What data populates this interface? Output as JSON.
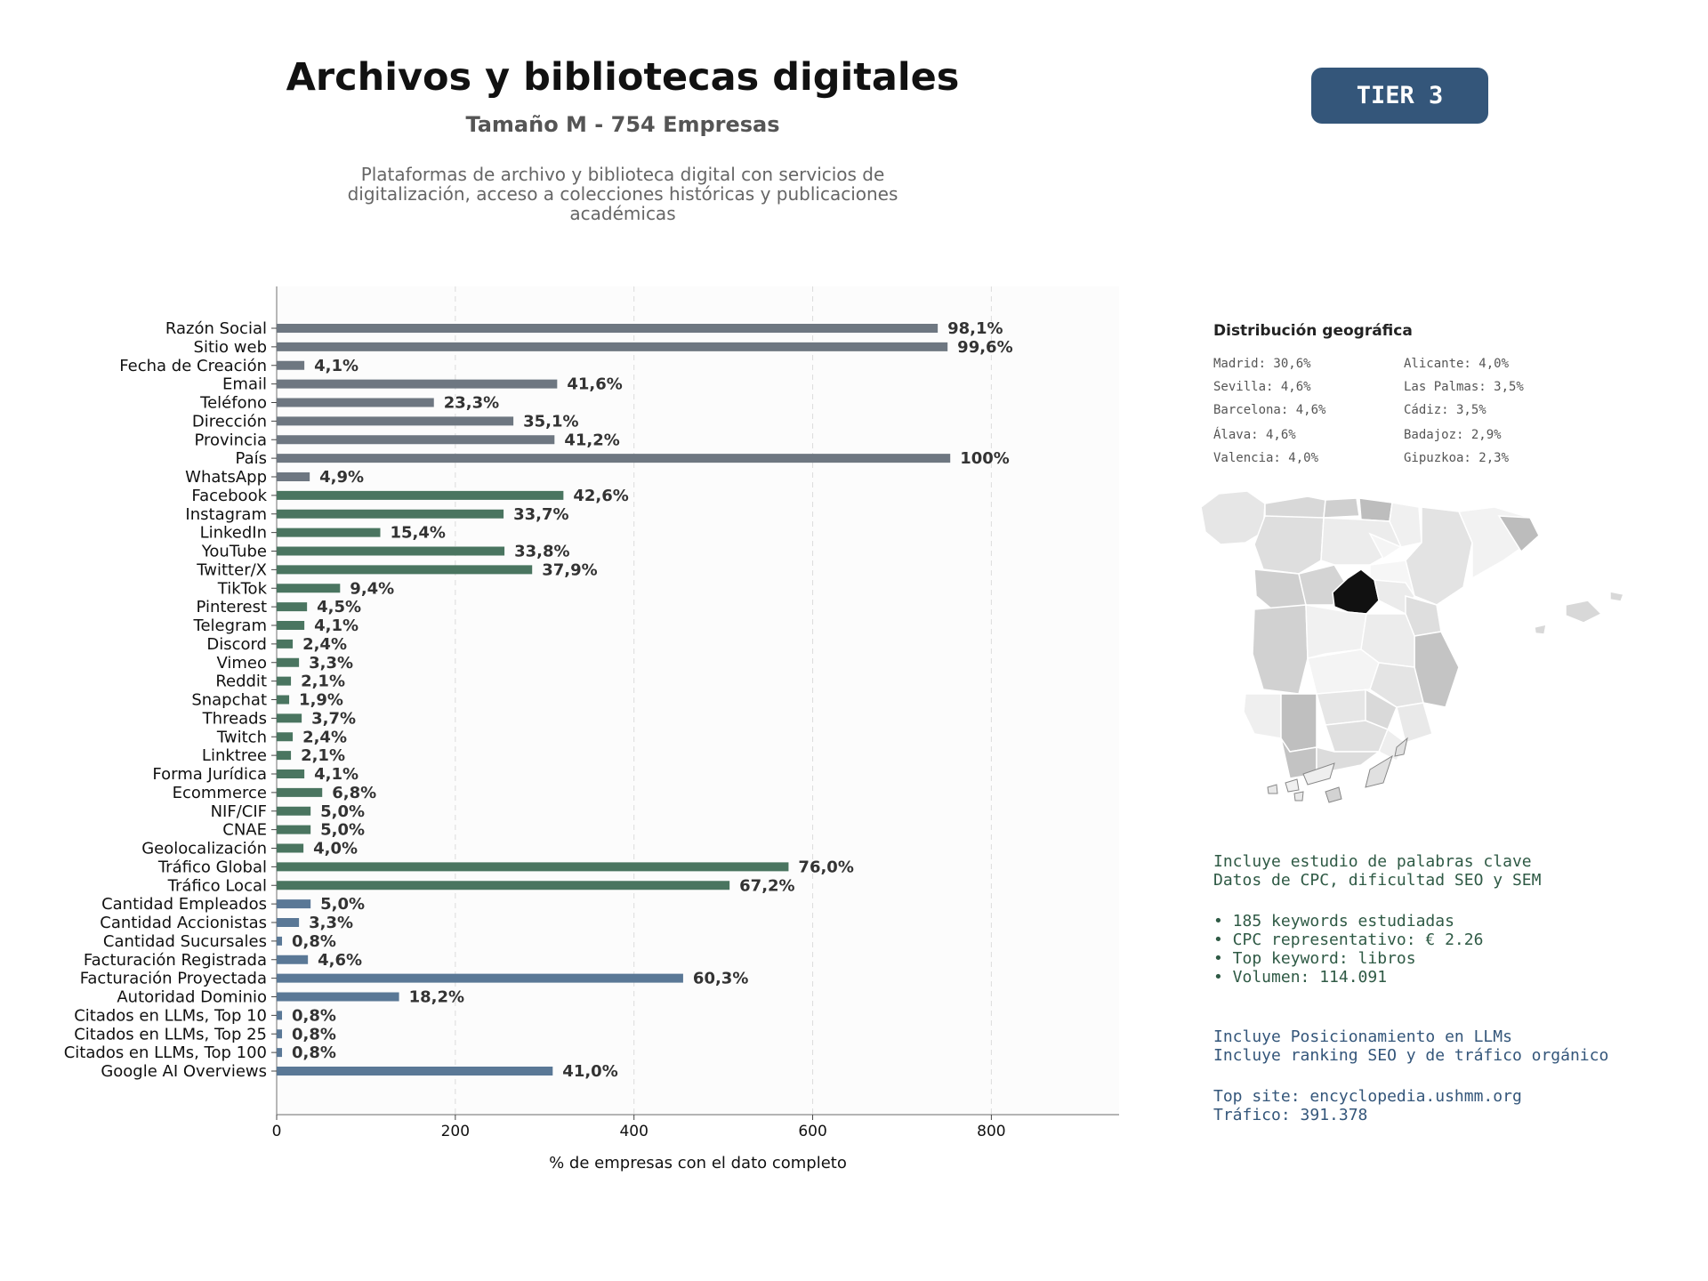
{
  "header": {
    "title": "Archivos y bibliotecas digitales",
    "subtitle": "Tamaño M - 754 Empresas",
    "description": "Plataformas de archivo y biblioteca digital con servicios de digitalización, acceso a colecciones históricas y publicaciones académicas",
    "tier": "TIER 3"
  },
  "colors": {
    "gray": "#6e7781",
    "green": "#4a7560",
    "blue": "#5a7896",
    "map_highlight": "#111111",
    "tier_bg": "#34567a"
  },
  "chart_data": {
    "type": "bar",
    "orientation": "horizontal",
    "xlabel": "% de empresas con el dato completo",
    "xlim": [
      0,
      943
    ],
    "xticks": [
      0,
      200,
      400,
      600,
      800
    ],
    "grid": "vertical dashed",
    "categories": [
      "Razón Social",
      "Sitio web",
      "Fecha de Creación",
      "Email",
      "Teléfono",
      "Dirección",
      "Provincia",
      "País",
      "WhatsApp",
      "Facebook",
      "Instagram",
      "LinkedIn",
      "YouTube",
      "Twitter/X",
      "TikTok",
      "Pinterest",
      "Telegram",
      "Discord",
      "Vimeo",
      "Reddit",
      "Snapchat",
      "Threads",
      "Twitch",
      "Linktree",
      "Forma Jurídica",
      "Ecommerce",
      "NIF/CIF",
      "CNAE",
      "Geolocalización",
      "Tráfico Global",
      "Tráfico Local",
      "Cantidad Empleados",
      "Cantidad Accionistas",
      "Cantidad Sucursales",
      "Facturación Registrada",
      "Facturación Proyectada",
      "Autoridad Dominio",
      "Citados en LLMs, Top 10",
      "Citados en LLMs, Top 25",
      "Citados en LLMs, Top 100",
      "Google AI Overviews"
    ],
    "values": [
      740,
      751,
      31,
      314,
      176,
      265,
      311,
      754,
      37,
      321,
      254,
      116,
      255,
      286,
      71,
      34,
      31,
      18,
      25,
      16,
      14,
      28,
      18,
      16,
      31,
      51,
      38,
      38,
      30,
      573,
      507,
      38,
      25,
      6,
      35,
      455,
      137,
      6,
      6,
      6,
      309
    ],
    "labels": [
      "98,1%",
      "99,6%",
      "4,1%",
      "41,6%",
      "23,3%",
      "35,1%",
      "41,2%",
      "100%",
      "4,9%",
      "42,6%",
      "33,7%",
      "15,4%",
      "33,8%",
      "37,9%",
      "9,4%",
      "4,5%",
      "4,1%",
      "2,4%",
      "3,3%",
      "2,1%",
      "1,9%",
      "3,7%",
      "2,4%",
      "2,1%",
      "4,1%",
      "6,8%",
      "5,0%",
      "5,0%",
      "4,0%",
      "76,0%",
      "67,2%",
      "5,0%",
      "3,3%",
      "0,8%",
      "4,6%",
      "60,3%",
      "18,2%",
      "0,8%",
      "0,8%",
      "0,8%",
      "41,0%"
    ],
    "groups": [
      "gray",
      "gray",
      "gray",
      "gray",
      "gray",
      "gray",
      "gray",
      "gray",
      "gray",
      "green",
      "green",
      "green",
      "green",
      "green",
      "green",
      "green",
      "green",
      "green",
      "green",
      "green",
      "green",
      "green",
      "green",
      "green",
      "green",
      "green",
      "green",
      "green",
      "green",
      "green",
      "green",
      "blue",
      "blue",
      "blue",
      "blue",
      "blue",
      "blue",
      "blue",
      "blue",
      "blue",
      "blue"
    ]
  },
  "geo": {
    "title": "Distribución geográfica",
    "col1": [
      "Madrid: 30,6%",
      "Sevilla: 4,6%",
      "Barcelona: 4,6%",
      "Álava: 4,6%",
      "Valencia: 4,0%"
    ],
    "col2": [
      "Alicante: 4,0%",
      "Las Palmas: 3,5%",
      "Cádiz: 3,5%",
      "Badajoz: 2,9%",
      "Gipuzkoa: 2,3%"
    ]
  },
  "seo": {
    "line1": "Incluye estudio de palabras clave",
    "line2": "Datos de CPC, dificultad SEO y SEM",
    "bullet1": "• 185 keywords estudiadas",
    "bullet2": "• CPC representativo: € 2.26",
    "bullet3": "• Top keyword: libros",
    "bullet4": "• Volumen: 114.091"
  },
  "llm": {
    "line1": "Incluye Posicionamiento en LLMs",
    "line2": "Incluye ranking SEO y de tráfico orgánico",
    "line3": "Top site: encyclopedia.ushmm.org",
    "line4": "Tráfico: 391.378"
  }
}
